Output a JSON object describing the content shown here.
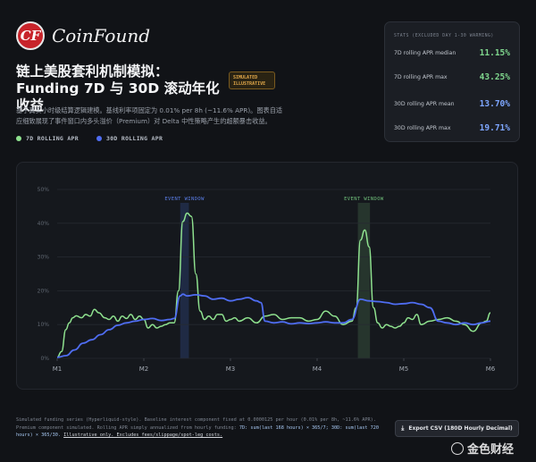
{
  "brand": {
    "logo_letters": "CF",
    "name": "CoinFound"
  },
  "header": {
    "title": "链上美股套利机制模拟：Funding 7D 与 30D 滚动年化收益",
    "badge": "SIMULATED ILLUSTRATIVE",
    "description": "基于真实小时级结算逻辑建模。基线利率项固定为 0.01% per 8h (~11.6% APR)。图表自适应细致展现了事件窗口内多头溢价（Premium）对 Delta 中性策略产生的超额暴击收益。"
  },
  "stats": {
    "header": "STATS (EXCLUDED DAY 1-30 WARMING)",
    "rows": [
      {
        "label": "7D rolling APR median",
        "value": "11.15%",
        "color": "#7fd68d"
      },
      {
        "label": "7D rolling APR max",
        "value": "43.25%",
        "color": "#7fd68d"
      },
      {
        "label": "30D rolling APR mean",
        "value": "13.70%",
        "color": "#7ea7ff"
      },
      {
        "label": "30D rolling APR max",
        "value": "19.71%",
        "color": "#7ea7ff"
      }
    ]
  },
  "colors": {
    "series_7d": "#8fe28f",
    "series_30d": "#4f6df2",
    "window_7d": "#2c3f33",
    "window_30d": "#233052",
    "window_30d_label": "#5a7ee8",
    "window_7d_label": "#6fbf7a"
  },
  "chart_data": {
    "type": "line",
    "xlabel": "",
    "ylabel": "",
    "x_ticks": [
      "M1",
      "M2",
      "M3",
      "M4",
      "M5",
      "M6"
    ],
    "x_range": [
      1,
      6
    ],
    "ylim": [
      0,
      50
    ],
    "y_ticks": [
      "0%",
      "10%",
      "20%",
      "30%",
      "40%",
      "50%"
    ],
    "grid": true,
    "legend": "top-left",
    "event_windows": [
      {
        "label": "EVENT WINDOW",
        "start": 2.42,
        "end": 2.52,
        "color_key": "30d"
      },
      {
        "label": "EVENT WINDOW",
        "start": 4.47,
        "end": 4.61,
        "color_key": "7d"
      }
    ],
    "series": [
      {
        "name": "7D ROLLING APR",
        "x": [
          1.0,
          1.05,
          1.1,
          1.14,
          1.18,
          1.22,
          1.28,
          1.33,
          1.38,
          1.43,
          1.48,
          1.55,
          1.6,
          1.65,
          1.7,
          1.75,
          1.8,
          1.85,
          1.9,
          1.95,
          2.0,
          2.05,
          2.1,
          2.15,
          2.2,
          2.25,
          2.3,
          2.35,
          2.4,
          2.45,
          2.5,
          2.55,
          2.6,
          2.65,
          2.7,
          2.75,
          2.8,
          2.85,
          2.9,
          2.95,
          3.0,
          3.05,
          3.1,
          3.2,
          3.3,
          3.4,
          3.5,
          3.6,
          3.7,
          3.8,
          3.9,
          4.0,
          4.1,
          4.2,
          4.3,
          4.4,
          4.45,
          4.5,
          4.55,
          4.6,
          4.65,
          4.7,
          4.75,
          4.8,
          4.85,
          4.9,
          4.95,
          5.0,
          5.05,
          5.1,
          5.15,
          5.2,
          5.3,
          5.4,
          5.5,
          5.6,
          5.7,
          5.8,
          5.9,
          5.95,
          6.0
        ],
        "values": [
          0.3,
          2.0,
          8.5,
          10.5,
          12.0,
          12.6,
          12.0,
          13.0,
          12.5,
          14.5,
          13.5,
          12.0,
          11.5,
          12.5,
          11.0,
          12.5,
          11.8,
          13.0,
          11.5,
          12.5,
          11.5,
          9.0,
          10.0,
          9.0,
          9.5,
          10.0,
          10.5,
          10.5,
          20.0,
          40.5,
          43.0,
          42.0,
          25.0,
          14.0,
          11.5,
          12.5,
          11.5,
          13.0,
          13.0,
          11.0,
          11.5,
          12.0,
          11.0,
          12.0,
          10.5,
          12.5,
          13.0,
          11.5,
          12.0,
          12.0,
          11.0,
          11.5,
          14.0,
          12.5,
          10.0,
          11.0,
          15.0,
          35.0,
          38.0,
          33.0,
          15.0,
          10.5,
          9.0,
          10.0,
          9.5,
          9.0,
          9.5,
          10.5,
          12.0,
          11.5,
          13.0,
          10.0,
          11.0,
          11.5,
          12.0,
          11.0,
          10.0,
          8.0,
          10.5,
          11.0,
          13.5
        ]
      },
      {
        "name": "30D ROLLING APR",
        "x": [
          1.0,
          1.1,
          1.2,
          1.3,
          1.4,
          1.5,
          1.6,
          1.7,
          1.8,
          1.9,
          2.0,
          2.1,
          2.2,
          2.3,
          2.35,
          2.42,
          2.45,
          2.5,
          2.6,
          2.7,
          2.8,
          2.9,
          3.0,
          3.1,
          3.2,
          3.3,
          3.35,
          3.4,
          3.5,
          3.6,
          3.7,
          3.8,
          3.9,
          4.0,
          4.1,
          4.2,
          4.3,
          4.4,
          4.5,
          4.6,
          4.7,
          4.8,
          4.9,
          5.0,
          5.1,
          5.2,
          5.3,
          5.4,
          5.5,
          5.6,
          5.7,
          5.8,
          5.9,
          6.0
        ],
        "values": [
          0.3,
          0.8,
          2.5,
          4.5,
          5.5,
          7.0,
          8.5,
          9.8,
          10.5,
          11.0,
          11.5,
          11.8,
          11.2,
          11.5,
          11.8,
          18.5,
          19.0,
          18.5,
          18.8,
          18.5,
          17.5,
          17.8,
          17.0,
          17.5,
          18.0,
          17.0,
          16.5,
          11.0,
          10.5,
          10.8,
          10.2,
          10.5,
          10.3,
          10.5,
          10.8,
          10.5,
          10.5,
          11.5,
          17.5,
          17.0,
          16.8,
          16.5,
          16.0,
          16.2,
          16.5,
          16.0,
          15.0,
          11.0,
          10.5,
          10.0,
          10.5,
          10.0,
          10.5,
          11.0
        ]
      }
    ]
  },
  "footer": {
    "line1": "Simulated funding series (Hyperliquid-style). Baseline interest component fixed at 0.0000125 per hour (0.01% per 8h, ~11.6% APR). Premium component simulated. Rolling APR simply annualized from hourly funding: ",
    "formula": "7D: sum(last 168 hours) × 365/7; 30D: sum(last 720 hours) × 365/30.",
    "note": "Illustrative only. Excludes fees/slippage/spot-leg costs."
  },
  "export": {
    "label": "Export CSV (180D Hourly Decimal)",
    "icon": "download-icon"
  },
  "watermark": {
    "text": "金色财经"
  }
}
